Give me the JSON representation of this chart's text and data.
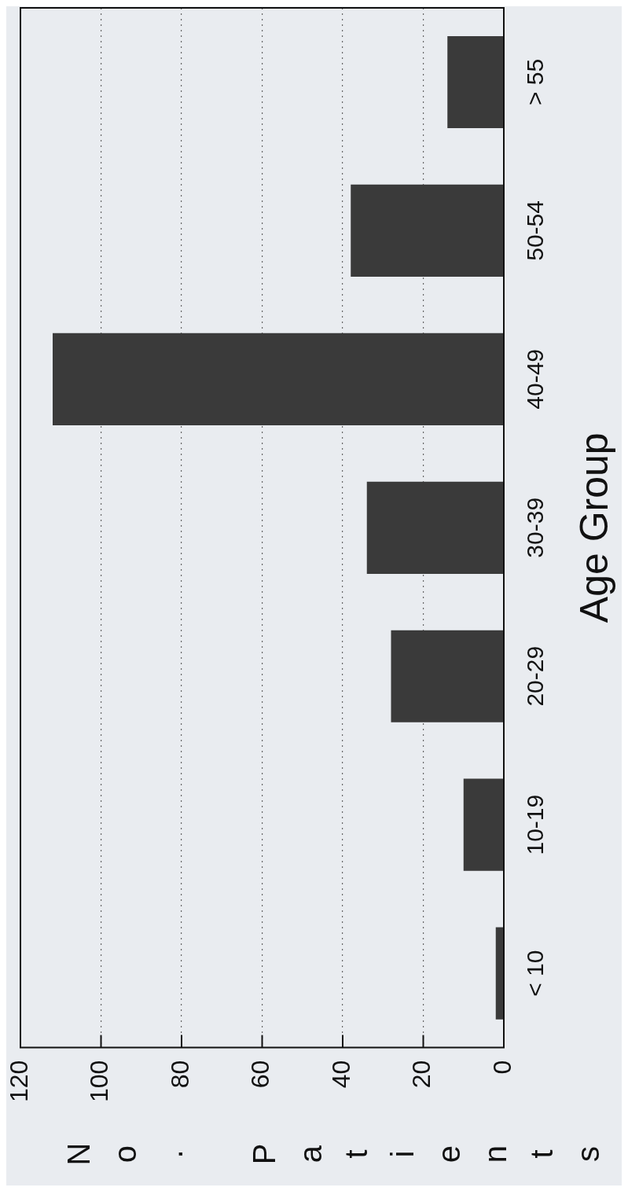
{
  "chart_data": {
    "type": "bar",
    "orientation": "horizontal",
    "xlabel": "No. Patients",
    "ylabel": "Age Group",
    "categories": [
      "> 55",
      "50-54",
      "40-49",
      "30-39",
      "20-29",
      "10-19",
      "< 10"
    ],
    "values": [
      14,
      38,
      112,
      34,
      28,
      10,
      2
    ],
    "color": "#3a3a3a",
    "xlim": [
      120,
      0
    ],
    "xticks": [
      120,
      100,
      80,
      60,
      40,
      20,
      0
    ],
    "grid": "x"
  }
}
